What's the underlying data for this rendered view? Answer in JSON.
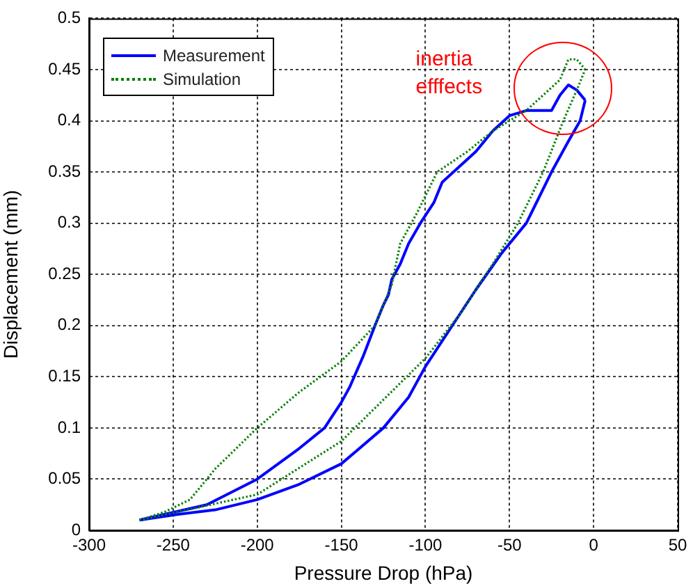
{
  "chart_data": {
    "type": "line",
    "xlabel": "Pressure Drop (hPa)",
    "ylabel": "Displacement (mm)",
    "xlim": [
      -300,
      50
    ],
    "xticks": [
      -300,
      -250,
      -200,
      -150,
      -100,
      -50,
      0,
      50
    ],
    "ylim": [
      0,
      0.5
    ],
    "yticks": [
      0,
      0.05,
      0.1,
      0.15,
      0.2,
      0.25,
      0.3,
      0.35,
      0.4,
      0.45,
      0.5
    ],
    "grid": true,
    "legend": "top left",
    "marker": "none",
    "annotations": [
      "inertia efffects"
    ],
    "series": [
      {
        "name": "Measurement",
        "color": "#0000ff",
        "line_style": "solid",
        "x": [
          -270,
          -250,
          -225,
          -200,
          -175,
          -150,
          -125,
          -110,
          -100,
          -84,
          -70,
          -55,
          -40,
          -25,
          -15,
          -8,
          -5
        ],
        "values": [
          0.01,
          0.015,
          0.02,
          0.03,
          0.045,
          0.065,
          0.1,
          0.13,
          0.16,
          0.2,
          0.235,
          0.27,
          0.3,
          0.35,
          0.38,
          0.4,
          0.42
        ]
      },
      {
        "color": "#0000ff",
        "line_style": "solid",
        "x": [
          -270,
          -230,
          -200,
          -175,
          -160,
          -150,
          -145,
          -137,
          -130,
          -125,
          -122,
          -120,
          -115,
          -110,
          -103,
          -95,
          -90,
          -80,
          -70,
          -60,
          -50,
          -40,
          -30,
          -25,
          -20,
          -15,
          -10,
          -5
        ],
        "values": [
          0.01,
          0.025,
          0.05,
          0.08,
          0.1,
          0.125,
          0.14,
          0.17,
          0.2,
          0.22,
          0.23,
          0.245,
          0.26,
          0.28,
          0.3,
          0.32,
          0.34,
          0.355,
          0.37,
          0.39,
          0.405,
          0.41,
          0.41,
          0.41,
          0.425,
          0.435,
          0.43,
          0.42
        ]
      },
      {
        "name": "Simulation",
        "color": "#008000",
        "line_style": "dotted",
        "x": [
          -270,
          -250,
          -200,
          -150,
          -100,
          -80,
          -60,
          -45,
          -30,
          -18,
          -10,
          -5
        ],
        "values": [
          0.01,
          0.017,
          0.035,
          0.087,
          0.168,
          0.21,
          0.26,
          0.3,
          0.35,
          0.4,
          0.43,
          0.45
        ]
      },
      {
        "color": "#008000",
        "line_style": "dotted",
        "x": [
          -270,
          -255,
          -240,
          -225,
          -200,
          -175,
          -150,
          -130,
          -125,
          -120,
          -115,
          -105,
          -93,
          -75,
          -60,
          -40,
          -30,
          -20,
          -15,
          -10,
          -5
        ],
        "values": [
          0.01,
          0.018,
          0.03,
          0.06,
          0.1,
          0.135,
          0.165,
          0.2,
          0.22,
          0.24,
          0.28,
          0.31,
          0.35,
          0.37,
          0.39,
          0.41,
          0.425,
          0.44,
          0.46,
          0.46,
          0.45
        ]
      }
    ]
  }
}
